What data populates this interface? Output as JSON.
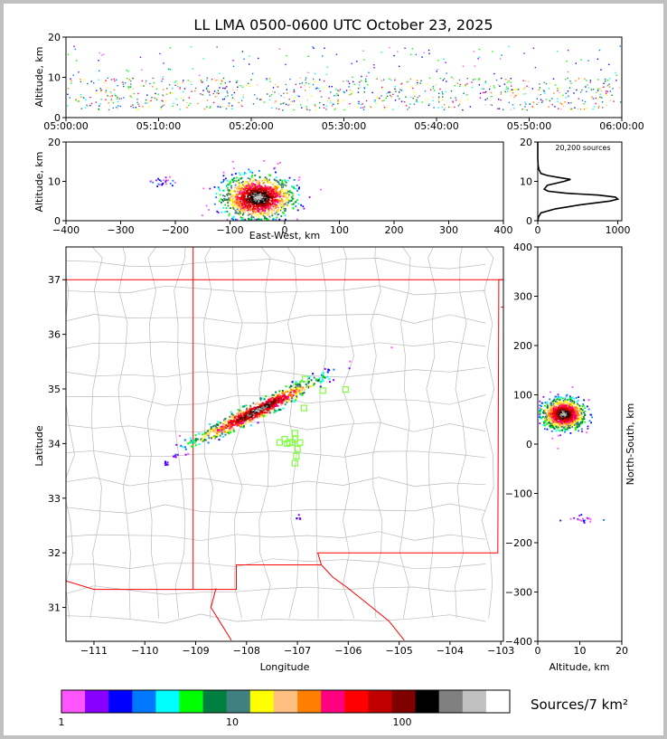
{
  "chart_data": [
    {
      "id": "time_panel",
      "type": "scatter",
      "title": "LL LMA 0500-0600 UTC October 23, 2025",
      "xlabel": "",
      "ylabel": "Altitude, km",
      "x_ticks": [
        "05:00:00",
        "05:10:00",
        "05:20:00",
        "05:30:00",
        "05:40:00",
        "05:50:00",
        "06:00:00"
      ],
      "xlim_minutes": [
        0,
        60
      ],
      "y_ticks": [
        0,
        10,
        20
      ],
      "ylim": [
        0,
        20
      ],
      "description_of_points": "dense columns of sources at 2-10 km altitude throughout the hour, isolated tops to ~18 km",
      "clusters": [
        {
          "x_min": 0,
          "x_max": 60,
          "y_min": 2,
          "y_max": 10,
          "density": "high"
        },
        {
          "x_min": 0,
          "x_max": 60,
          "y_min": 10,
          "y_max": 18,
          "density": "low"
        }
      ]
    },
    {
      "id": "ew_altitude_panel",
      "type": "heatmap",
      "xlabel": "East-West, km",
      "ylabel": "Altitude, km",
      "x_ticks": [
        -400,
        -300,
        -200,
        -100,
        0,
        100,
        200,
        300,
        400
      ],
      "xlim": [
        -400,
        400
      ],
      "y_ticks": [
        0,
        10,
        20
      ],
      "ylim": [
        0,
        20
      ],
      "clusters": [
        {
          "x": -50,
          "y": 6,
          "sx": 40,
          "sy": 3.5,
          "density": "high"
        },
        {
          "x": -220,
          "y": 10,
          "sx": 15,
          "sy": 1,
          "density": "low"
        }
      ]
    },
    {
      "id": "altitude_histogram",
      "type": "line",
      "annotation": "20,200 sources",
      "x_ticks": [
        0,
        1000
      ],
      "xlim": [
        0,
        1050
      ],
      "y_ticks": [
        0,
        10,
        20
      ],
      "ylim": [
        0,
        20
      ],
      "points_alt_count": [
        [
          0,
          0
        ],
        [
          1,
          10
        ],
        [
          2,
          40
        ],
        [
          3,
          220
        ],
        [
          4,
          520
        ],
        [
          5,
          900
        ],
        [
          5.5,
          1000
        ],
        [
          6,
          970
        ],
        [
          6.5,
          760
        ],
        [
          7,
          350
        ],
        [
          7.5,
          130
        ],
        [
          8,
          80
        ],
        [
          9,
          120
        ],
        [
          10,
          330
        ],
        [
          10.5,
          410
        ],
        [
          11,
          260
        ],
        [
          11.5,
          120
        ],
        [
          12,
          40
        ],
        [
          13,
          15
        ],
        [
          14,
          5
        ],
        [
          16,
          0
        ],
        [
          20,
          0
        ]
      ]
    },
    {
      "id": "plan_view",
      "type": "scatter",
      "xlabel": "Longitude",
      "ylabel": "Latitude",
      "x_ticks": [
        -111,
        -110,
        -109,
        -108,
        -107,
        -106,
        -105,
        -104,
        -103
      ],
      "xlim": [
        -111.55,
        -102.95
      ],
      "y_ticks": [
        31,
        32,
        33,
        34,
        35,
        36,
        37
      ],
      "ylim": [
        30.38,
        37.6
      ],
      "network_stations": [
        [
          -106.85,
          35.18
        ],
        [
          -106.5,
          34.97
        ],
        [
          -106.05,
          34.99
        ],
        [
          -106.87,
          34.65
        ],
        [
          -107.25,
          34.08
        ],
        [
          -107.15,
          34.02
        ],
        [
          -107.05,
          34.19
        ],
        [
          -107.05,
          34.08
        ],
        [
          -107.35,
          34.02
        ],
        [
          -107.2,
          34.0
        ],
        [
          -107.1,
          34.02
        ],
        [
          -106.95,
          34.02
        ],
        [
          -107.0,
          33.9
        ],
        [
          -107.02,
          33.77
        ],
        [
          -107.05,
          33.64
        ]
      ],
      "clusters": [
        {
          "lon": -107.8,
          "lat": 34.62,
          "spread": "elongated SW-NE band",
          "density": "high"
        },
        {
          "lon": -108.35,
          "lat": 34.35,
          "density": "medium"
        },
        {
          "lon": -109.6,
          "lat": 33.65,
          "density": "low"
        },
        {
          "lon": -107.0,
          "lat": 32.67,
          "density": "low"
        }
      ]
    },
    {
      "id": "ns_altitude_panel",
      "type": "heatmap",
      "xlabel": "Altitude, km",
      "ylabel": "North-South, km",
      "x_ticks": [
        0,
        10,
        20
      ],
      "xlim": [
        0,
        20
      ],
      "y_ticks": [
        -400,
        -300,
        -200,
        -100,
        0,
        100,
        200,
        300,
        400
      ],
      "ylim": [
        -400,
        400
      ],
      "clusters": [
        {
          "x": 6,
          "y": 62,
          "sx": 3,
          "sy": 18,
          "density": "high"
        },
        {
          "x": 10,
          "y": -150,
          "sx": 3,
          "sy": 5,
          "density": "low"
        }
      ]
    }
  ],
  "colorbar": {
    "label": "Sources/7 km²",
    "tick_labels": [
      "1",
      "10",
      "100"
    ],
    "colors": [
      "#ff55ff",
      "#8800ff",
      "#0000ff",
      "#0077ff",
      "#00ffff",
      "#00ff00",
      "#008040",
      "#408080",
      "#ffff00",
      "#ffbf80",
      "#ff8000",
      "#ff0080",
      "#ff0000",
      "#c00000",
      "#800000",
      "#000000",
      "#808080",
      "#c0c0c0",
      "#ffffff"
    ]
  },
  "colors": {
    "border": "#ff0000",
    "counties": "#bbbbbb",
    "stations": "#80ff40"
  }
}
